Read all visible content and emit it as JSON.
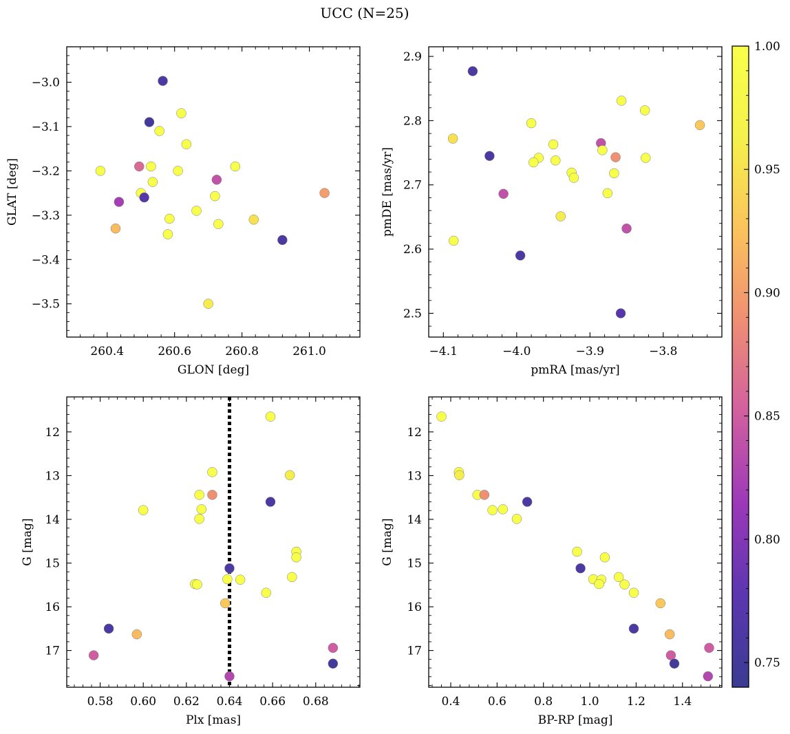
{
  "figure": {
    "title": "UCC (N=25)"
  },
  "colormap": {
    "name": "plasma",
    "stops": [
      "#3a3c92",
      "#5b36b0",
      "#9b38b9",
      "#d15fa0",
      "#ef8e73",
      "#fbc35c",
      "#f5f14b",
      "#f8ff4a"
    ],
    "range": [
      0.74,
      1.0
    ],
    "ticks": [
      0.75,
      0.8,
      0.85,
      0.9,
      0.95,
      1.0
    ],
    "tick_labels": [
      "0.75",
      "0.80",
      "0.85",
      "0.90",
      "0.95",
      "1.00"
    ]
  },
  "chart_data": [
    {
      "type": "scatter",
      "title": "",
      "xlabel": "GLON [deg]",
      "ylabel": "GLAT [deg]",
      "xlim": [
        260.28,
        261.15
      ],
      "ylim": [
        -3.575,
        -2.92
      ],
      "xticks": [
        260.4,
        260.6,
        260.8,
        261.0
      ],
      "xtick_labels": [
        "260.4",
        "260.6",
        "260.8",
        "261.0"
      ],
      "yticks": [
        -3.5,
        -3.4,
        -3.3,
        -3.2,
        -3.1,
        -3.0
      ],
      "ytick_labels": [
        "−3.5",
        "−3.4",
        "−3.3",
        "−3.2",
        "−3.1",
        "−3.0"
      ],
      "x": [
        260.565,
        260.525,
        260.62,
        260.555,
        260.635,
        260.38,
        260.495,
        260.53,
        260.61,
        260.78,
        260.725,
        260.5,
        260.535,
        260.435,
        260.51,
        260.72,
        261.045,
        260.585,
        260.665,
        260.73,
        260.835,
        260.425,
        260.58,
        260.92,
        260.7
      ],
      "y": [
        -2.997,
        -3.09,
        -3.07,
        -3.11,
        -3.14,
        -3.2,
        -3.19,
        -3.19,
        -3.2,
        -3.19,
        -3.22,
        -3.25,
        -3.225,
        -3.27,
        -3.26,
        -3.257,
        -3.25,
        -3.308,
        -3.29,
        -3.32,
        -3.31,
        -3.33,
        -3.343,
        -3.356,
        -3.5
      ],
      "c": [
        0.76,
        0.75,
        1.0,
        1.0,
        1.0,
        1.0,
        0.86,
        1.0,
        1.0,
        1.0,
        0.84,
        1.0,
        1.0,
        0.82,
        0.77,
        1.0,
        0.9,
        1.0,
        1.0,
        1.0,
        0.95,
        0.92,
        1.0,
        0.76,
        0.96
      ]
    },
    {
      "type": "scatter",
      "title": "",
      "xlabel": "pmRA [mas/yr]",
      "ylabel": "pmDE [mas/yr]",
      "xlim": [
        -4.12,
        -3.72
      ],
      "ylim": [
        2.463,
        2.915
      ],
      "xticks": [
        -4.1,
        -4.0,
        -3.9,
        -3.8
      ],
      "xtick_labels": [
        "−4.1",
        "−4.0",
        "−3.9",
        "−3.8"
      ],
      "yticks": [
        2.5,
        2.6,
        2.7,
        2.8,
        2.9
      ],
      "ytick_labels": [
        "2.5",
        "2.6",
        "2.7",
        "2.8",
        "2.9"
      ],
      "x": [
        -4.06,
        -3.857,
        -3.825,
        -3.75,
        -4.087,
        -3.98,
        -3.885,
        -4.037,
        -3.95,
        -3.883,
        -3.865,
        -3.824,
        -3.97,
        -3.977,
        -3.947,
        -3.925,
        -3.867,
        -3.922,
        -3.876,
        -4.018,
        -3.94,
        -3.85,
        -4.086,
        -3.995,
        -3.858
      ],
      "y": [
        2.877,
        2.831,
        2.816,
        2.793,
        2.772,
        2.796,
        2.765,
        2.745,
        2.763,
        2.754,
        2.743,
        2.742,
        2.742,
        2.735,
        2.738,
        2.719,
        2.718,
        2.711,
        2.687,
        2.686,
        2.651,
        2.632,
        2.613,
        2.59,
        2.5
      ],
      "c": [
        0.76,
        1.0,
        1.0,
        0.93,
        0.95,
        1.0,
        0.84,
        0.76,
        1.0,
        1.0,
        0.89,
        1.0,
        1.0,
        1.0,
        1.0,
        1.0,
        1.0,
        1.0,
        1.0,
        0.84,
        0.96,
        0.84,
        1.0,
        0.76,
        0.77
      ]
    },
    {
      "type": "scatter",
      "title": "",
      "xlabel": "Plx [mas]",
      "ylabel": "G [mag]",
      "xlim": [
        0.5645,
        0.7005
      ],
      "ylim": [
        17.84,
        11.2
      ],
      "y_inverted": true,
      "xticks": [
        0.58,
        0.6,
        0.62,
        0.64,
        0.66,
        0.68
      ],
      "xtick_labels": [
        "0.58",
        "0.60",
        "0.62",
        "0.64",
        "0.66",
        "0.68"
      ],
      "yticks": [
        12,
        13,
        14,
        15,
        16,
        17
      ],
      "ytick_labels": [
        "12",
        "13",
        "14",
        "15",
        "16",
        "17"
      ],
      "vline": {
        "x": 0.64,
        "style": "dotted"
      },
      "x": [
        0.659,
        0.632,
        0.668,
        0.626,
        0.632,
        0.659,
        0.6,
        0.627,
        0.626,
        0.671,
        0.671,
        0.64,
        0.669,
        0.639,
        0.645,
        0.624,
        0.625,
        0.657,
        0.638,
        0.584,
        0.597,
        0.577,
        0.688,
        0.688,
        0.64
      ],
      "y": [
        11.65,
        12.92,
        12.99,
        13.44,
        13.44,
        13.6,
        13.79,
        13.77,
        13.99,
        14.74,
        14.87,
        15.12,
        15.32,
        15.37,
        15.38,
        15.48,
        15.49,
        15.68,
        15.92,
        16.5,
        16.63,
        17.11,
        16.94,
        17.3,
        17.59
      ],
      "c": [
        1.0,
        1.0,
        0.96,
        1.0,
        0.89,
        0.76,
        1.0,
        1.0,
        1.0,
        1.0,
        1.0,
        0.76,
        1.0,
        1.0,
        1.0,
        1.0,
        1.0,
        1.0,
        0.93,
        0.76,
        0.92,
        0.85,
        0.85,
        0.75,
        0.83
      ]
    },
    {
      "type": "scatter",
      "title": "",
      "xlabel": "BP-RP [mag]",
      "ylabel": "G [mag]",
      "xlim": [
        0.305,
        1.57
      ],
      "ylim": [
        17.84,
        11.2
      ],
      "y_inverted": true,
      "xticks": [
        0.4,
        0.6,
        0.8,
        1.0,
        1.2,
        1.4
      ],
      "xtick_labels": [
        "0.4",
        "0.6",
        "0.8",
        "1.0",
        "1.2",
        "1.4"
      ],
      "yticks": [
        12,
        13,
        14,
        15,
        16,
        17
      ],
      "ytick_labels": [
        "12",
        "13",
        "14",
        "15",
        "16",
        "17"
      ],
      "x": [
        0.36,
        0.435,
        0.437,
        0.515,
        0.545,
        0.73,
        0.58,
        0.625,
        0.685,
        0.945,
        1.065,
        0.96,
        1.125,
        1.015,
        1.05,
        1.04,
        1.15,
        1.19,
        1.305,
        1.19,
        1.345,
        1.35,
        1.515,
        1.365,
        1.51
      ],
      "y": [
        11.65,
        12.92,
        12.99,
        13.44,
        13.44,
        13.6,
        13.79,
        13.77,
        13.99,
        14.74,
        14.87,
        15.12,
        15.32,
        15.37,
        15.38,
        15.48,
        15.49,
        15.68,
        15.92,
        16.5,
        16.63,
        17.11,
        16.94,
        17.3,
        17.59
      ],
      "c": [
        1.0,
        1.0,
        0.96,
        1.0,
        0.89,
        0.76,
        1.0,
        1.0,
        1.0,
        1.0,
        1.0,
        0.76,
        1.0,
        1.0,
        1.0,
        1.0,
        1.0,
        1.0,
        0.93,
        0.76,
        0.92,
        0.85,
        0.85,
        0.75,
        0.83
      ]
    }
  ]
}
